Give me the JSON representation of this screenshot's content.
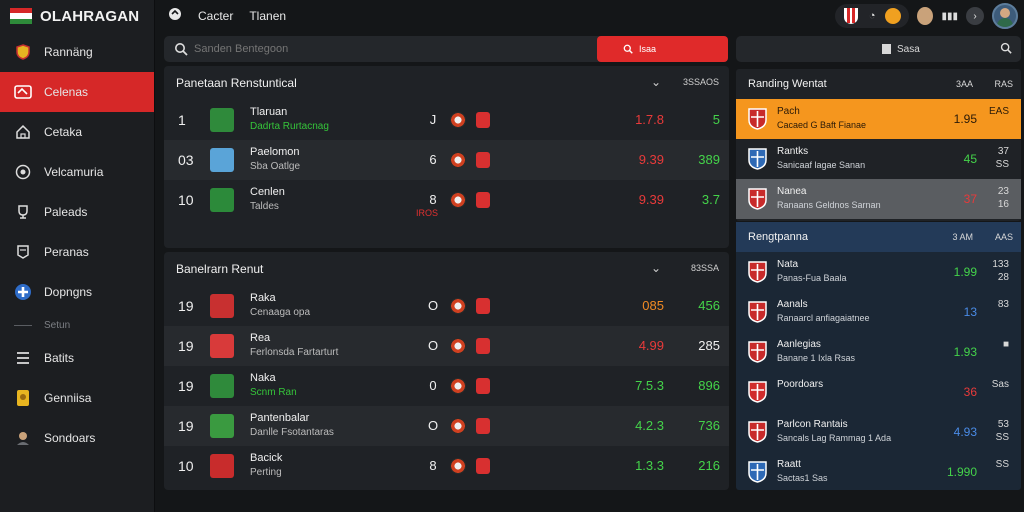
{
  "app": {
    "brand": "OLAHRAGAN"
  },
  "sidebar": {
    "items": [
      {
        "label": "Rannäng",
        "icon": "shield-icon"
      },
      {
        "label": "Celenas",
        "icon": "ticket-icon",
        "active": true
      },
      {
        "label": "Cetaka",
        "icon": "home-icon"
      },
      {
        "label": "Velcamuria",
        "icon": "ball-icon"
      },
      {
        "label": "Paleads",
        "icon": "trophy-icon"
      },
      {
        "label": "Peranas",
        "icon": "flag-icon"
      },
      {
        "label": "Dopngns",
        "icon": "medical-cross-icon"
      }
    ],
    "section_label": "Setun",
    "items2": [
      {
        "label": "Batits",
        "icon": "list-icon"
      },
      {
        "label": "Genniisa",
        "icon": "badge-icon"
      },
      {
        "label": "Sondoars",
        "icon": "user-icon"
      }
    ]
  },
  "topbar": {
    "left_items": [
      "Cacter",
      "Tlanen"
    ]
  },
  "search": {
    "placeholder": "Sanden Bentegoon",
    "button_label": "Isaa"
  },
  "right_search": {
    "label": "Sasa"
  },
  "panel1": {
    "title": "Panetaan Renstuntical",
    "meta": "3SSAOS",
    "rows": [
      {
        "rank": "1",
        "name": "Tlaruan",
        "sub": "Dadrta Rurtacnag",
        "sub_green": true,
        "form": "J",
        "odd": "1.7.8",
        "odd_color": "red",
        "score": "5",
        "score_color": "green",
        "logo_color": "#2f8a3b"
      },
      {
        "rank": "03",
        "name": "Paelomon",
        "sub": "Sba Oatlge",
        "sub_green": false,
        "form": "6",
        "odd": "9.39",
        "odd_color": "red",
        "score": "389",
        "score_color": "green",
        "logo_color": "#5aa4d8"
      },
      {
        "rank": "10",
        "name": "Cenlen",
        "sub": "Taldes",
        "sub_green": false,
        "form": "8",
        "odd": "9.39",
        "odd_color": "red",
        "score": "3.7",
        "score_color": "green",
        "logo_color": "#2c8a3a",
        "note": "IROS"
      }
    ]
  },
  "panel2": {
    "title": "Banelrarn Renut",
    "meta": "83SSA",
    "rows": [
      {
        "rank": "19",
        "name": "Raka",
        "sub": "Cenaaga opa",
        "form": "O",
        "odd": "085",
        "odd_color": "orange",
        "score": "456",
        "score_color": "green",
        "logo_color": "#c83030"
      },
      {
        "rank": "19",
        "name": "Rea",
        "sub": "Ferlonsda Fartarturt",
        "form": "O",
        "odd": "4.99",
        "odd_color": "red",
        "score": "285",
        "score_color": "white",
        "logo_color": "#d83a3a"
      },
      {
        "rank": "19",
        "name": "Naka",
        "sub": "Scnm Ran",
        "sub_green": true,
        "form": "0",
        "odd": "7.5.3",
        "odd_color": "green",
        "score": "896",
        "score_color": "green",
        "logo_color": "#2f8a3b"
      },
      {
        "rank": "19",
        "name": "Pantenbalar",
        "sub": "Danlle Fsotantaras",
        "form": "O",
        "odd": "4.2.3",
        "odd_color": "green",
        "score": "736",
        "score_color": "green",
        "logo_color": "#3a9a40"
      },
      {
        "rank": "10",
        "name": "Bacick",
        "sub": "Perting",
        "form": "8",
        "odd": "1.3.3",
        "odd_color": "green",
        "score": "216",
        "score_color": "green",
        "logo_color": "#c82c2c"
      }
    ]
  },
  "rpanel1": {
    "title": "Randing Wentat",
    "m1": "3AA",
    "m2": "RAS",
    "rows": [
      {
        "name": "Pach",
        "sub": "Cacaed G Baft Fianae",
        "val": "1.95",
        "val_color": "#2a1a08",
        "score": "EAS",
        "bg": "orange",
        "shield": "#c82a2a"
      },
      {
        "name": "Rantks",
        "sub": "Sanicaaf lagae Sanan",
        "val": "45",
        "val_color": "#44d34a",
        "score": "37\nSS",
        "bg": "none",
        "shield": "#2e69b5"
      },
      {
        "name": "Nanea",
        "sub": "Ranaans Geldnos Sarnan",
        "val": "37",
        "val_color": "#e83a3a",
        "score": "23\n16",
        "bg": "gray",
        "shield": "#c82a2a"
      }
    ]
  },
  "rpanel2": {
    "title": "Rengtpanna",
    "m1": "3 AM",
    "m2": "AAS",
    "rows": [
      {
        "name": "Nata",
        "sub": "Panas-Fua Baala",
        "val": "1.99",
        "val_color": "#44d34a",
        "score": "133\n28",
        "shield": "#c82a2a"
      },
      {
        "name": "Aanals",
        "sub": "Ranaarcl anfiagaiatnee",
        "val": "13",
        "val_color": "#4a8be6",
        "score": "83",
        "shield": "#c82a2a"
      },
      {
        "name": "Aanlegias",
        "sub": "Banane 1 Ixla Rsas",
        "val": "1.93",
        "val_color": "#44d34a",
        "score": "■",
        "shield": "#c82a2a"
      },
      {
        "name": "Poordoars",
        "sub": "",
        "val": "36",
        "val_color": "#e83a3a",
        "score": "Sas",
        "shield": "#d02c2c"
      },
      {
        "name": "Parlcon Rantais",
        "sub": "Sancals Lag Rammag 1 Ada",
        "val": "4.93",
        "val_color": "#4a8be6",
        "score": "53\nSS",
        "shield": "#c82a2a"
      },
      {
        "name": "Raatt",
        "sub": "Sactas1 Sas",
        "val": "1.990",
        "val_color": "#44d34a",
        "score": "SS",
        "shield": "#2e69b5"
      }
    ]
  },
  "colors": {
    "accent": "#d62828",
    "orange": "#f5961e",
    "green": "#44d34a"
  }
}
